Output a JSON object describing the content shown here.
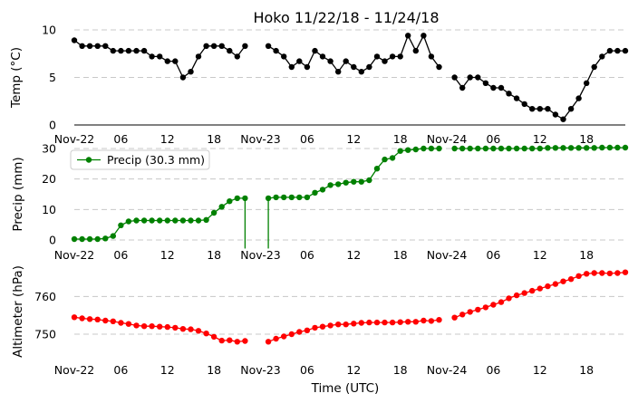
{
  "chart_data": {
    "title": "Hoko 11/22/18 - 11/24/18",
    "xlabel": "Time (UTC)",
    "x_tick_labels": [
      "Nov-22",
      "06",
      "12",
      "18",
      "Nov-23",
      "06",
      "12",
      "18",
      "Nov-24",
      "06",
      "12",
      "18"
    ],
    "x_tick_hours": [
      0,
      6,
      12,
      18,
      24,
      30,
      36,
      42,
      48,
      54,
      60,
      66
    ],
    "x_range_hours": [
      0,
      71
    ],
    "panels": [
      {
        "type": "line",
        "name": "temp",
        "ylabel": "Temp (°C)",
        "ylim": [
          0,
          10
        ],
        "yticks": [
          0,
          5,
          10
        ],
        "color": "#000000",
        "grid": true,
        "legend": null,
        "x": [
          0,
          1,
          2,
          3,
          4,
          5,
          6,
          7,
          8,
          9,
          10,
          11,
          12,
          13,
          14,
          15,
          16,
          17,
          18,
          19,
          20,
          21,
          22,
          25,
          26,
          27,
          28,
          29,
          30,
          31,
          32,
          33,
          34,
          35,
          36,
          37,
          38,
          39,
          40,
          41,
          42,
          43,
          44,
          45,
          46,
          47,
          49,
          50,
          51,
          52,
          53,
          54,
          55,
          56,
          57,
          58,
          59,
          60,
          61,
          62,
          63,
          64,
          65,
          66,
          67,
          68,
          69,
          70,
          71
        ],
        "y": [
          8.9,
          8.3,
          8.3,
          8.3,
          8.3,
          7.8,
          7.8,
          7.8,
          7.8,
          7.8,
          7.2,
          7.2,
          6.7,
          6.7,
          5.0,
          5.6,
          7.2,
          8.3,
          8.3,
          8.3,
          7.8,
          7.2,
          8.3,
          8.3,
          7.8,
          7.2,
          6.1,
          6.7,
          6.1,
          7.8,
          7.2,
          6.7,
          5.6,
          6.7,
          6.1,
          5.6,
          6.1,
          7.2,
          6.7,
          7.2,
          7.2,
          9.4,
          7.8,
          9.4,
          7.2,
          6.1,
          5.0,
          3.9,
          5.0,
          5.0,
          4.4,
          3.9,
          3.9,
          3.3,
          2.8,
          2.2,
          1.7,
          1.7,
          1.7,
          1.1,
          0.6,
          1.7,
          2.8,
          4.4,
          6.1,
          7.2,
          7.8,
          7.8,
          7.8
        ]
      },
      {
        "type": "line",
        "name": "precip",
        "ylabel": "Precip (mm)",
        "ylim": [
          0,
          30
        ],
        "yticks": [
          0,
          10,
          20,
          30
        ],
        "color": "#008000",
        "grid": true,
        "legend": "Precip (30.3 mm)",
        "legend_location": "top-left",
        "x": [
          0,
          1,
          2,
          3,
          4,
          5,
          6,
          7,
          8,
          9,
          10,
          11,
          12,
          13,
          14,
          15,
          16,
          17,
          18,
          19,
          20,
          21,
          22,
          25,
          26,
          27,
          28,
          29,
          30,
          31,
          32,
          33,
          34,
          35,
          36,
          37,
          38,
          39,
          40,
          41,
          42,
          43,
          44,
          45,
          46,
          47,
          49,
          50,
          51,
          52,
          53,
          54,
          55,
          56,
          57,
          58,
          59,
          60,
          61,
          62,
          63,
          64,
          65,
          66,
          67,
          68,
          69,
          70,
          71
        ],
        "y": [
          0.3,
          0.3,
          0.3,
          0.3,
          0.5,
          1.3,
          4.8,
          6.1,
          6.4,
          6.4,
          6.4,
          6.4,
          6.4,
          6.4,
          6.4,
          6.4,
          6.4,
          6.6,
          8.9,
          10.9,
          12.7,
          13.7,
          13.7,
          13.7,
          14.0,
          14.0,
          14.0,
          14.0,
          14.0,
          15.5,
          16.5,
          18.0,
          18.3,
          18.8,
          19.1,
          19.1,
          19.6,
          23.4,
          26.4,
          26.9,
          29.2,
          29.5,
          29.7,
          30.0,
          30.0,
          30.0,
          30.0,
          30.0,
          30.0,
          30.0,
          30.0,
          30.0,
          30.0,
          30.0,
          30.0,
          30.0,
          30.0,
          30.0,
          30.2,
          30.2,
          30.2,
          30.2,
          30.2,
          30.2,
          30.2,
          30.3,
          30.3,
          30.3,
          30.3
        ],
        "drops_to_hour": [
          22,
          25
        ],
        "drop_value": -2.8
      },
      {
        "type": "line",
        "name": "altimeter",
        "ylabel": "Altimeter (hPa)",
        "ylim": [
          744,
          768
        ],
        "yticks": [
          750,
          760
        ],
        "color": "#ff0000",
        "grid": true,
        "legend": null,
        "x": [
          0,
          1,
          2,
          3,
          4,
          5,
          6,
          7,
          8,
          9,
          10,
          11,
          12,
          13,
          14,
          15,
          16,
          17,
          18,
          19,
          20,
          21,
          22,
          25,
          26,
          27,
          28,
          29,
          30,
          31,
          32,
          33,
          34,
          35,
          36,
          37,
          38,
          39,
          40,
          41,
          42,
          43,
          44,
          45,
          46,
          47,
          49,
          50,
          51,
          52,
          53,
          54,
          55,
          56,
          57,
          58,
          59,
          60,
          61,
          62,
          63,
          64,
          65,
          66,
          67,
          68,
          69,
          70,
          71
        ],
        "y": [
          754.5,
          754.2,
          754.0,
          753.9,
          753.6,
          753.4,
          753.0,
          752.7,
          752.3,
          752.1,
          752.1,
          752.0,
          751.9,
          751.7,
          751.4,
          751.3,
          750.9,
          750.2,
          749.3,
          748.3,
          748.4,
          748.0,
          748.2,
          748.0,
          748.8,
          749.4,
          750.0,
          750.6,
          751.0,
          751.7,
          752.0,
          752.3,
          752.6,
          752.6,
          752.8,
          753.0,
          753.1,
          753.1,
          753.1,
          753.1,
          753.2,
          753.3,
          753.3,
          753.6,
          753.5,
          753.8,
          754.4,
          755.2,
          755.9,
          756.5,
          757.1,
          757.8,
          758.5,
          759.5,
          760.3,
          760.9,
          761.5,
          762.1,
          762.7,
          763.3,
          764.0,
          764.6,
          765.4,
          766.0,
          766.2,
          766.2,
          766.1,
          766.2,
          766.4
        ]
      }
    ]
  }
}
